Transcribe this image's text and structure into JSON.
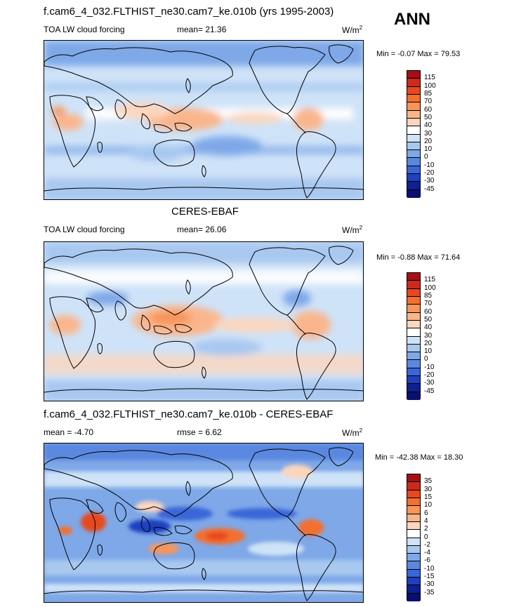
{
  "season": "ANN",
  "chart_data": [
    {
      "type": "heatmap",
      "title": "f.cam6_4_032.FLTHIST_ne30.cam7_ke.010b (yrs 1995-2003)",
      "left_label": "TOA LW cloud forcing",
      "center_label": "mean=  21.36",
      "units": "W/m",
      "units_exp": "2",
      "min_max": "Min =  -0.07 Max =  79.53",
      "min": -0.07,
      "max": 79.53,
      "mean": 21.36,
      "colorbar": {
        "levels": [
          "115",
          "100",
          "85",
          "70",
          "60",
          "50",
          "40",
          "30",
          "20",
          "10",
          "0",
          "-10",
          "-20",
          "-30",
          "-45"
        ],
        "colors": [
          "#a50f15",
          "#cc2a1e",
          "#e8481f",
          "#f3702e",
          "#f7955a",
          "#fab58c",
          "#fcd6bd",
          "#ffffff",
          "#cfe3f8",
          "#a8c8f0",
          "#7ea8e8",
          "#5a88e0",
          "#3a66d8",
          "#1f40c0",
          "#102090",
          "#0a0f6e"
        ]
      }
    },
    {
      "type": "heatmap",
      "title": "CERES-EBAF",
      "left_label": "TOA LW cloud forcing",
      "center_label": "mean=  26.06",
      "units": "W/m",
      "units_exp": "2",
      "min_max": "Min =  -0.88 Max =  71.64",
      "min": -0.88,
      "max": 71.64,
      "mean": 26.06,
      "colorbar": {
        "levels": [
          "115",
          "100",
          "85",
          "70",
          "60",
          "50",
          "40",
          "30",
          "20",
          "10",
          "0",
          "-10",
          "-20",
          "-30",
          "-45"
        ],
        "colors": [
          "#a50f15",
          "#cc2a1e",
          "#e8481f",
          "#f3702e",
          "#f7955a",
          "#fab58c",
          "#fcd6bd",
          "#ffffff",
          "#cfe3f8",
          "#a8c8f0",
          "#7ea8e8",
          "#5a88e0",
          "#3a66d8",
          "#1f40c0",
          "#102090",
          "#0a0f6e"
        ]
      }
    },
    {
      "type": "heatmap",
      "title": "f.cam6_4_032.FLTHIST_ne30.cam7_ke.010b - CERES-EBAF",
      "left_label": "mean =  -4.70",
      "center_label": "rmse =   6.62",
      "units": "W/m",
      "units_exp": "2",
      "min_max": "Min = -42.38 Max =  18.30",
      "min": -42.38,
      "max": 18.3,
      "mean": -4.7,
      "rmse": 6.62,
      "colorbar": {
        "levels": [
          "35",
          "30",
          "15",
          "10",
          "6",
          "4",
          "2",
          "0",
          "-2",
          "-4",
          "-6",
          "-10",
          "-15",
          "-30",
          "-35"
        ],
        "colors": [
          "#a50f15",
          "#cc2a1e",
          "#e8481f",
          "#f3702e",
          "#f7955a",
          "#fab58c",
          "#fcd6bd",
          "#ffffff",
          "#cfe3f8",
          "#a8c8f0",
          "#7ea8e8",
          "#5a88e0",
          "#3a66d8",
          "#1f40c0",
          "#102090",
          "#0a0f6e"
        ]
      }
    }
  ],
  "style": {
    "line_color": "#000000",
    "background": "#ffffff"
  }
}
